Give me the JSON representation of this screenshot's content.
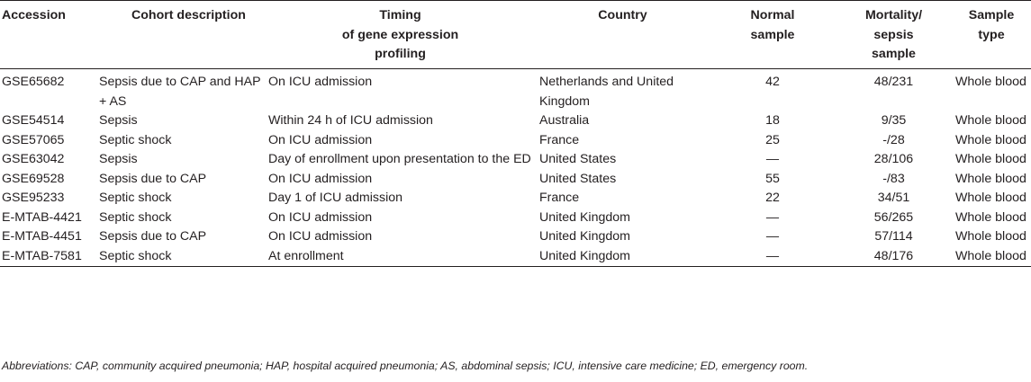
{
  "table": {
    "headers": {
      "accession": "Accession",
      "cohort": "Cohort description",
      "timing_lines": [
        "Timing",
        "of",
        "gene expression",
        "profiling"
      ],
      "country": "Country",
      "normal_lines": [
        "Normal",
        "sample"
      ],
      "mortality_lines": [
        "Mortality/",
        "sepsis",
        "sample"
      ],
      "type_lines": [
        "Sample",
        "type"
      ]
    },
    "rows": [
      {
        "accession": "GSE65682",
        "cohort": "Sepsis due to CAP and HAP + AS",
        "timing": "On ICU admission",
        "country": "Netherlands and United Kingdom",
        "normal": "42",
        "mortality": "48/231",
        "type": "Whole blood"
      },
      {
        "accession": "GSE54514",
        "cohort": "Sepsis",
        "timing": "Within 24 h of ICU admission",
        "country": "Australia",
        "normal": "18",
        "mortality": "9/35",
        "type": "Whole blood"
      },
      {
        "accession": "GSE57065",
        "cohort": "Septic shock",
        "timing": "On ICU admission",
        "country": "France",
        "normal": "25",
        "mortality": "-/28",
        "type": "Whole blood"
      },
      {
        "accession": "GSE63042",
        "cohort": "Sepsis",
        "timing": "Day of enrollment upon presentation to the ED",
        "country": "United States",
        "normal": "—",
        "mortality": "28/106",
        "type": "Whole blood"
      },
      {
        "accession": "GSE69528",
        "cohort": "Sepsis due to CAP",
        "timing": "On ICU admission",
        "country": "United States",
        "normal": "55",
        "mortality": "-/83",
        "type": "Whole blood"
      },
      {
        "accession": "GSE95233",
        "cohort": "Septic shock",
        "timing": "Day 1 of ICU admission",
        "country": "France",
        "normal": "22",
        "mortality": "34/51",
        "type": "Whole blood"
      },
      {
        "accession": "E-MTAB-4421",
        "cohort": "Septic shock",
        "timing": "On ICU admission",
        "country": "United Kingdom",
        "normal": "—",
        "mortality": "56/265",
        "type": "Whole blood"
      },
      {
        "accession": "E-MTAB-4451",
        "cohort": "Sepsis due to CAP",
        "timing": "On ICU admission",
        "country": "United Kingdom",
        "normal": "—",
        "mortality": "57/114",
        "type": "Whole blood"
      },
      {
        "accession": "E-MTAB-7581",
        "cohort": "Septic shock",
        "timing": "At enrollment",
        "country": "United Kingdom",
        "normal": "—",
        "mortality": "48/176",
        "type": "Whole blood"
      }
    ]
  },
  "footnote": "Abbreviations: CAP, community acquired pneumonia; HAP, hospital acquired pneumonia; AS, abdominal sepsis; ICU, intensive care medicine; ED, emergency room."
}
